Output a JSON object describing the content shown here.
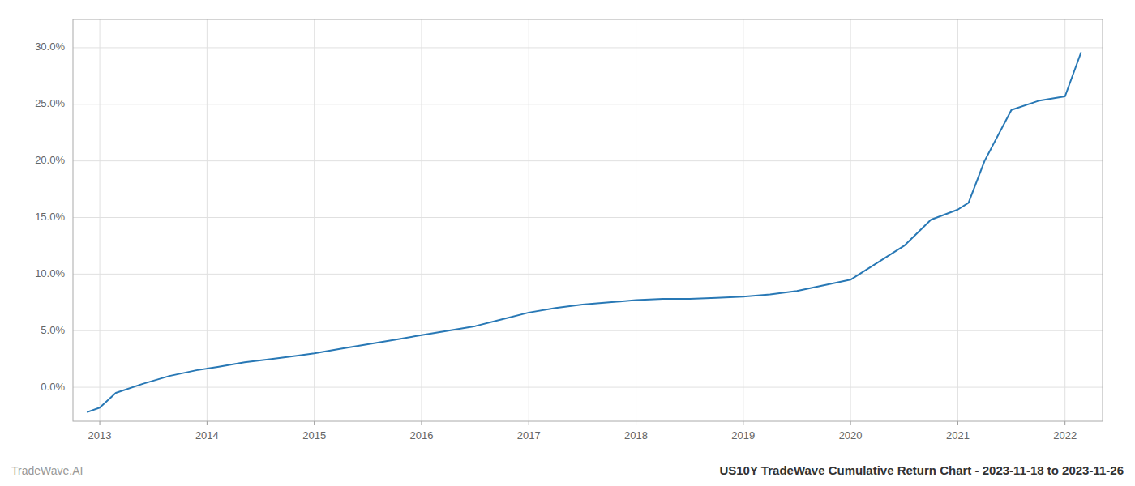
{
  "chart_data": {
    "type": "line",
    "title": "US10Y TradeWave Cumulative Return Chart - 2023-11-18 to 2023-11-26",
    "annotations": [
      "TradeWave.AI"
    ],
    "color": "#2878b5",
    "grid": true,
    "x": [
      2012.88,
      2013.0,
      2013.15,
      2013.4,
      2013.65,
      2013.9,
      2014.1,
      2014.35,
      2014.6,
      2014.85,
      2015.0,
      2015.25,
      2015.5,
      2015.75,
      2016.0,
      2016.25,
      2016.5,
      2016.75,
      2017.0,
      2017.25,
      2017.5,
      2017.75,
      2018.0,
      2018.25,
      2018.5,
      2018.75,
      2019.0,
      2019.25,
      2019.5,
      2019.75,
      2020.0,
      2020.25,
      2020.5,
      2020.75,
      2021.0,
      2021.1,
      2021.25,
      2021.5,
      2021.75,
      2022.0,
      2022.15
    ],
    "values": [
      -0.022,
      -0.018,
      -0.005,
      0.003,
      0.01,
      0.015,
      0.018,
      0.022,
      0.025,
      0.028,
      0.03,
      0.034,
      0.038,
      0.042,
      0.046,
      0.05,
      0.054,
      0.06,
      0.066,
      0.07,
      0.073,
      0.075,
      0.077,
      0.078,
      0.078,
      0.079,
      0.08,
      0.082,
      0.085,
      0.09,
      0.095,
      0.11,
      0.125,
      0.148,
      0.157,
      0.163,
      0.2,
      0.245,
      0.253,
      0.257,
      0.296
    ],
    "xlim": [
      2012.75,
      2022.35
    ],
    "ylim": [
      -0.03,
      0.325
    ],
    "xticks": [
      2013,
      2014,
      2015,
      2016,
      2017,
      2018,
      2019,
      2020,
      2021,
      2022
    ],
    "yticks": [
      {
        "value": 0.0,
        "label": "0.0%"
      },
      {
        "value": 0.05,
        "label": "5.0%"
      },
      {
        "value": 0.1,
        "label": "10.0%"
      },
      {
        "value": 0.15,
        "label": "15.0%"
      },
      {
        "value": 0.2,
        "label": "20.0%"
      },
      {
        "value": 0.25,
        "label": "25.0%"
      },
      {
        "value": 0.3,
        "label": "30.0%"
      }
    ]
  }
}
